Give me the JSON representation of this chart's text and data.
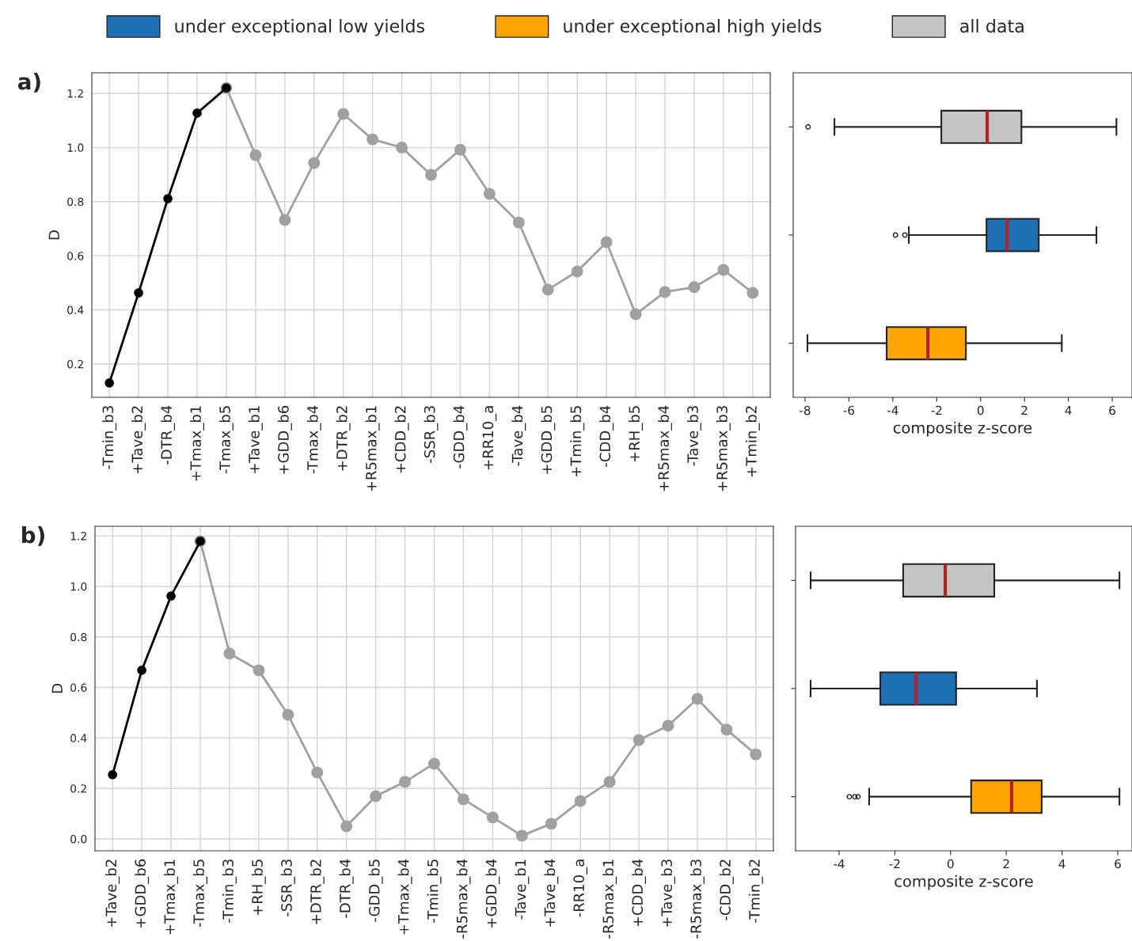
{
  "chart_data": [
    {
      "type": "line",
      "title": "a)",
      "ylabel": "D",
      "grid": true,
      "marker": "circle",
      "line_style": "solid",
      "categories": [
        "-Tmin_b3",
        "+Tave_b2",
        "-DTR_b4",
        "+Tmax_b1",
        "-Tmax_b5",
        "+Tave_b1",
        "+GDD_b6",
        "-Tmax_b4",
        "+DTR_b2",
        "+R5max_b1",
        "+CDD_b2",
        "-SSR_b3",
        "-GDD_b4",
        "+RR10_a",
        "-Tave_b4",
        "+GDD_b5",
        "+Tmin_b5",
        "-CDD_b4",
        "+RH_b5",
        "+R5max_b4",
        "-Tave_b3",
        "+R5max_b3",
        "+Tmin_b2"
      ],
      "ylim": [
        0.077,
        1.276
      ],
      "yticks": [
        {
          "value": 0.2,
          "label": "0.2"
        },
        {
          "value": 0.4,
          "label": "0.4"
        },
        {
          "value": 0.6,
          "label": "0.6"
        },
        {
          "value": 0.8,
          "label": "0.8"
        },
        {
          "value": 1.0,
          "label": "1.0"
        },
        {
          "value": 1.2,
          "label": "1.2"
        }
      ],
      "series": [
        {
          "color": "#000000",
          "values": [
            0.13,
            0.463,
            0.811,
            1.127,
            1.22,
            null,
            null,
            null,
            null,
            null,
            null,
            null,
            null,
            null,
            null,
            null,
            null,
            null,
            null,
            null,
            null,
            null,
            null
          ]
        },
        {
          "color": "#a0a0a0",
          "values": [
            null,
            null,
            null,
            null,
            1.22,
            0.972,
            0.732,
            0.943,
            1.124,
            1.03,
            1.0,
            0.899,
            0.992,
            0.829,
            0.723,
            0.475,
            0.542,
            0.65,
            0.384,
            0.466,
            0.484,
            0.548,
            0.463
          ]
        }
      ]
    },
    {
      "type": "box",
      "orientation": "horizontal",
      "xlabel": "composite z-score",
      "tick_labels": "x",
      "legend": "top",
      "categories": [
        null,
        null,
        null
      ],
      "xlim": [
        -8.54,
        6.9
      ],
      "xticks": [
        -8,
        -6,
        -4,
        -2,
        0,
        2,
        4,
        6
      ],
      "series": [
        {
          "name": "all data",
          "color": "#c4c4c4",
          "boxes": [
            {
              "low": -6.66,
              "q1": -1.79,
              "median": 0.3,
              "q3": 1.86,
              "high": 6.19,
              "outliers": [
                -7.86
              ]
            },
            null,
            null
          ]
        },
        {
          "name": "under exceptional low yields",
          "color": "#1f70b4",
          "boxes": [
            null,
            {
              "low": -3.27,
              "q1": 0.27,
              "median": 1.21,
              "q3": 2.65,
              "high": 5.28,
              "outliers": [
                -3.88,
                -3.45
              ]
            },
            null
          ]
        },
        {
          "name": "under exceptional high yields",
          "color": "#ffa500",
          "boxes": [
            null,
            null,
            {
              "low": -7.89,
              "q1": -4.28,
              "median": -2.4,
              "q3": -0.67,
              "high": 3.7
            }
          ]
        }
      ]
    },
    {
      "type": "line",
      "title": "b)",
      "ylabel": "D",
      "grid": true,
      "marker": "circle",
      "line_style": "solid",
      "categories": [
        "+Tave_b2",
        "+GDD_b6",
        "+Tmax_b1",
        "-Tmax_b5",
        "-Tmin_b3",
        "+RH_b5",
        "-SSR_b3",
        "+DTR_b2",
        "-DTR_b4",
        "-GDD_b5",
        "+Tmax_b4",
        "-Tmin_b5",
        "-R5max_b4",
        "+GDD_b4",
        "-Tave_b1",
        "+Tave_b4",
        "-RR10_a",
        "-R5max_b1",
        "+CDD_b4",
        "+Tave_b3",
        "-R5max_b3",
        "-CDD_b2",
        "-Tmin_b2"
      ],
      "ylim": [
        -0.047,
        1.238
      ],
      "yticks": [
        {
          "value": 0.0,
          "label": "0.0"
        },
        {
          "value": 0.2,
          "label": "0.2"
        },
        {
          "value": 0.4,
          "label": "0.4"
        },
        {
          "value": 0.6,
          "label": "0.6"
        },
        {
          "value": 0.8,
          "label": "0.8"
        },
        {
          "value": 1.0,
          "label": "1.0"
        },
        {
          "value": 1.2,
          "label": "1.2"
        }
      ],
      "series": [
        {
          "color": "#000000",
          "values": [
            0.254,
            0.668,
            0.962,
            1.179,
            null,
            null,
            null,
            null,
            null,
            null,
            null,
            null,
            null,
            null,
            null,
            null,
            null,
            null,
            null,
            null,
            null,
            null,
            null
          ]
        },
        {
          "color": "#a0a0a0",
          "values": [
            null,
            null,
            null,
            1.179,
            0.734,
            0.668,
            0.492,
            0.263,
            0.05,
            0.169,
            0.226,
            0.298,
            0.157,
            0.085,
            0.013,
            0.06,
            0.15,
            0.226,
            0.392,
            0.448,
            0.555,
            0.433,
            0.335
          ]
        }
      ]
    },
    {
      "type": "box",
      "orientation": "horizontal",
      "xlabel": "composite z-score",
      "tick_labels": "x",
      "categories": [
        null,
        null,
        null
      ],
      "xlim": [
        -5.56,
        6.51
      ],
      "xticks": [
        -4,
        -2,
        0,
        2,
        4,
        6
      ],
      "series": [
        {
          "color": "#c4c4c4",
          "boxes": [
            {
              "low": -5.02,
              "q1": -1.7,
              "median": -0.19,
              "q3": 1.57,
              "high": 6.06
            },
            null,
            null
          ]
        },
        {
          "color": "#1f70b4",
          "boxes": [
            null,
            {
              "low": -5.02,
              "q1": -2.52,
              "median": -1.24,
              "q3": 0.2,
              "high": 3.1
            },
            null
          ]
        },
        {
          "color": "#ffa500",
          "boxes": [
            null,
            null,
            {
              "low": -2.92,
              "q1": 0.74,
              "median": 2.19,
              "q3": 3.27,
              "high": 6.06,
              "outliers": [
                -3.63,
                -3.43,
                -3.32
              ]
            }
          ]
        }
      ]
    }
  ]
}
